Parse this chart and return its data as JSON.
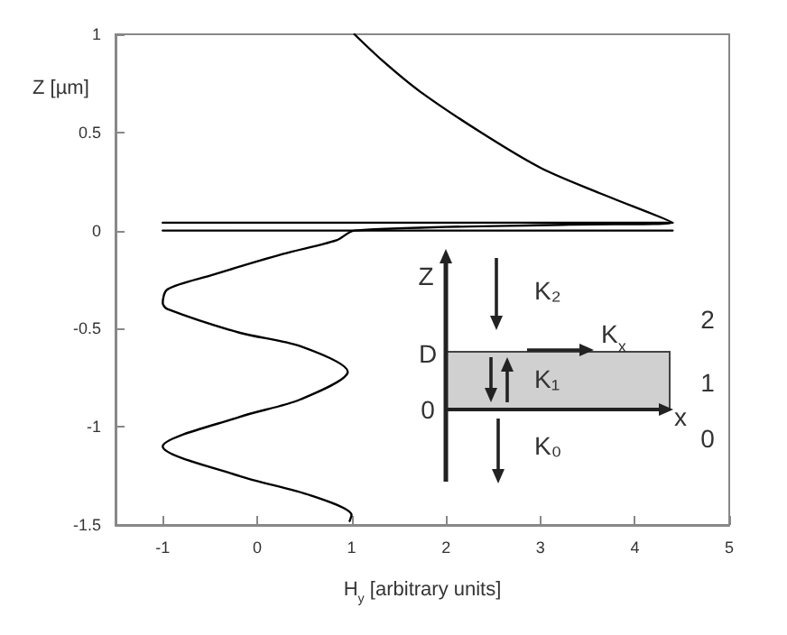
{
  "chart_data": {
    "type": "line",
    "xlabel": "H$_{y}$ [arbitrary units]",
    "ylabel": "Z [µm]",
    "xlim": [
      -1.5,
      5
    ],
    "xticks": [
      -1,
      0,
      1,
      2,
      3,
      4,
      5
    ],
    "ylim": [
      -1.5,
      1
    ],
    "yticks": [
      -1.5,
      -1,
      -0.5,
      0,
      0.5,
      1
    ],
    "grid": false,
    "marker": "none",
    "line_style": "solid",
    "series": [
      {
        "color": "#000000",
        "x": [
          1.03,
          1.34,
          1.72,
          2.37,
          3.0,
          3.63,
          4.4,
          3.3,
          1.03,
          0.84,
          0.27,
          -0.5,
          -0.95,
          -1.0,
          -0.95,
          -0.19,
          0.46,
          0.96,
          0.46,
          -0.19,
          -1.0,
          -0.19,
          0.57,
          1.0,
          0.98
        ],
        "values": [
          1,
          0.86,
          0.71,
          0.5,
          0.32,
          0.19,
          0.04,
          0.03,
          0,
          -0.05,
          -0.12,
          -0.23,
          -0.3,
          -0.37,
          -0.4,
          -0.52,
          -0.59,
          -0.72,
          -0.86,
          -0.95,
          -1.1,
          -1.25,
          -1.35,
          -1.45,
          -1.48
        ]
      },
      {
        "color": "#000000",
        "x": [
          -1,
          4.4
        ],
        "values": [
          0,
          0
        ]
      },
      {
        "color": "#000000",
        "x": [
          -1,
          4.4
        ],
        "values": [
          0.04,
          0.04
        ]
      }
    ],
    "annotations": [
      "Z",
      "K₂",
      "D",
      "K$_{x}$",
      "K₁",
      "0",
      "x",
      "K₀",
      "2",
      "1",
      "0"
    ]
  }
}
